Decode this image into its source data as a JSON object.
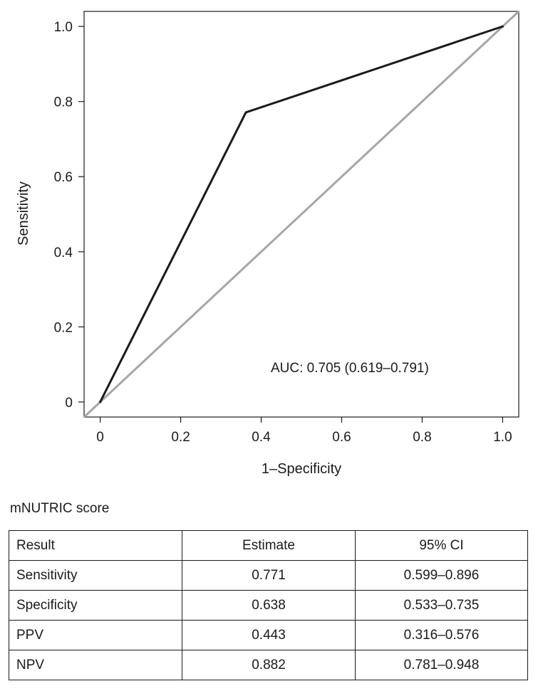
{
  "chart_data": {
    "type": "line",
    "xlabel": "1–Specificity",
    "ylabel": "Sensitivity",
    "xlim": [
      -0.04,
      1.04
    ],
    "ylim": [
      -0.04,
      1.04
    ],
    "x_ticks": [
      0,
      0.2,
      0.4,
      0.6,
      0.8,
      1.0
    ],
    "x_tick_labels": [
      "0",
      "0.2",
      "0.4",
      "0.6",
      "0.8",
      "1.0"
    ],
    "y_ticks": [
      0,
      0.2,
      0.4,
      0.6,
      0.8,
      1.0
    ],
    "y_tick_labels": [
      "0",
      "0.2",
      "0.4",
      "0.6",
      "0.8",
      "1.0"
    ],
    "grid": false,
    "series": [
      {
        "x": [
          0,
          0.362,
          1.0
        ],
        "y": [
          0,
          0.771,
          1.0
        ],
        "color": "#1a1a1a"
      }
    ],
    "reference_line": {
      "x": [
        -0.04,
        1.04
      ],
      "y": [
        -0.04,
        1.04
      ],
      "color": "#a6a6a6"
    },
    "annotation": {
      "text": "AUC: 0.705 (0.619–0.791)",
      "x": 0.43,
      "y": 0.095
    }
  },
  "table": {
    "title": "mNUTRIC score",
    "header": [
      "Result",
      "Estimate",
      "95% CI"
    ],
    "rows": [
      [
        "Sensitivity",
        "0.771",
        "0.599–0.896"
      ],
      [
        "Specificity",
        "0.638",
        "0.533–0.735"
      ],
      [
        "PPV",
        "0.443",
        "0.316–0.576"
      ],
      [
        "NPV",
        "0.882",
        "0.781–0.948"
      ]
    ]
  }
}
